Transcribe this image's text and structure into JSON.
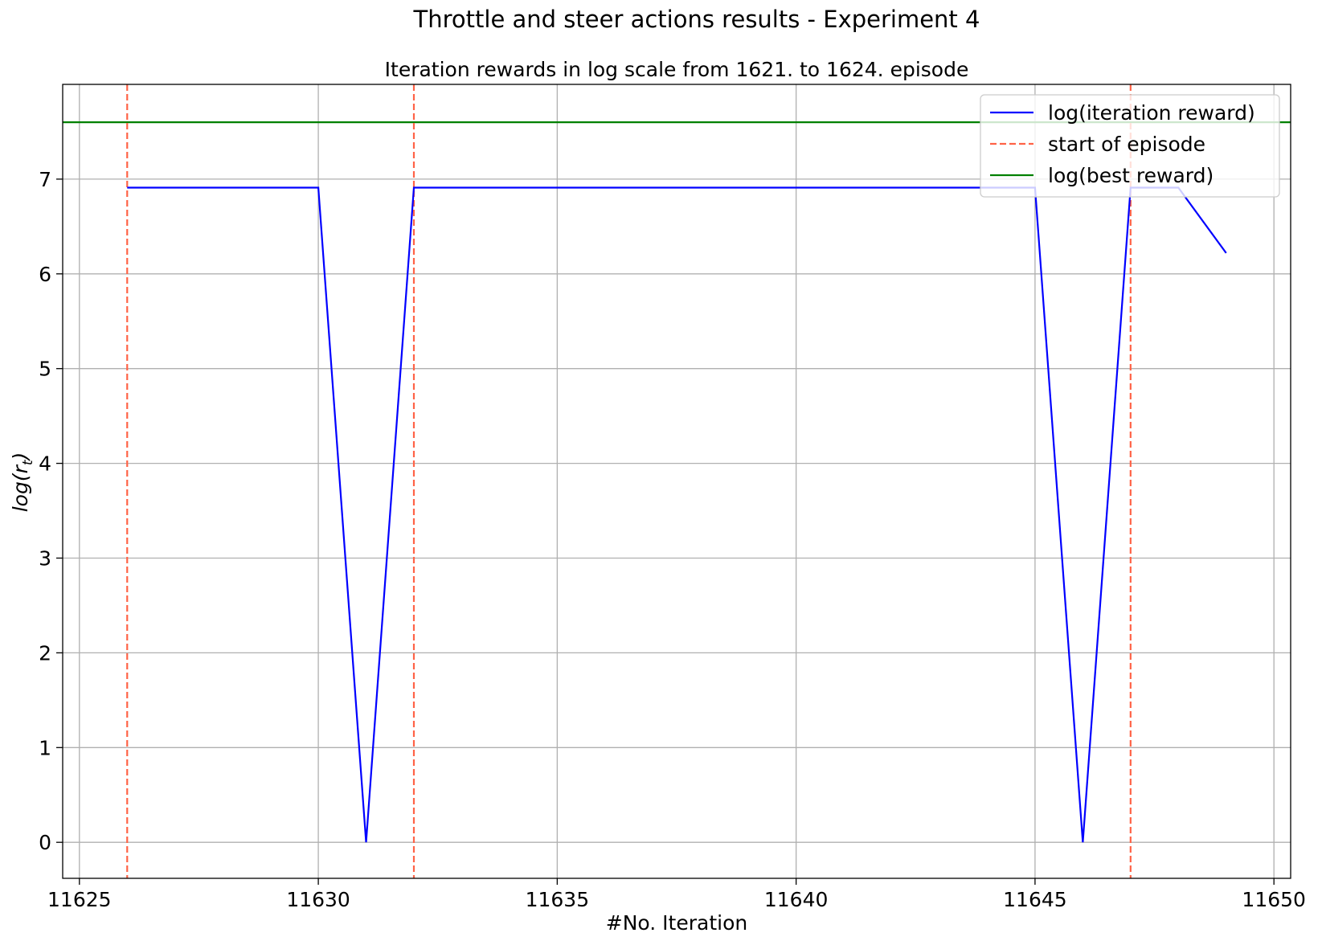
{
  "chart_data": {
    "type": "line",
    "suptitle": "Throttle and steer actions results - Experiment 4",
    "title": "Iteration rewards in log scale from 1621. to 1624. episode",
    "xlabel": "#No. Iteration",
    "ylabel": "log(r_t)",
    "ylabel_parts": {
      "base": "log(r",
      "sub": "t",
      "close": ")"
    },
    "xlim": [
      11624.65,
      11650.35
    ],
    "ylim": [
      -0.38,
      8.0
    ],
    "x_ticks": [
      11625,
      11630,
      11635,
      11640,
      11645,
      11650
    ],
    "y_ticks": [
      0,
      1,
      2,
      3,
      4,
      5,
      6,
      7
    ],
    "grid": true,
    "legend_position": "upper right",
    "colors": {
      "iteration_reward": "#0000ff",
      "episode_start": "#ff6347",
      "best_reward": "#008000",
      "grid": "#b0b0b0"
    },
    "series": [
      {
        "name": "log(iteration reward)",
        "style": "solid",
        "color": "#0000ff",
        "x": [
          11626,
          11627,
          11628,
          11629,
          11630,
          11631,
          11632,
          11633,
          11634,
          11635,
          11636,
          11637,
          11638,
          11639,
          11640,
          11641,
          11642,
          11643,
          11644,
          11645,
          11646,
          11647,
          11648,
          11649
        ],
        "y": [
          6.91,
          6.91,
          6.91,
          6.91,
          6.91,
          0.0,
          6.91,
          6.91,
          6.91,
          6.91,
          6.91,
          6.91,
          6.91,
          6.91,
          6.91,
          6.91,
          6.91,
          6.91,
          6.91,
          6.91,
          0.0,
          6.91,
          6.91,
          6.22
        ]
      },
      {
        "name": "start of episode",
        "style": "dashed",
        "color": "#ff6347",
        "vlines": [
          11626,
          11632,
          11647
        ]
      },
      {
        "name": "log(best reward)",
        "style": "solid",
        "color": "#008000",
        "hline": 7.6
      }
    ]
  }
}
